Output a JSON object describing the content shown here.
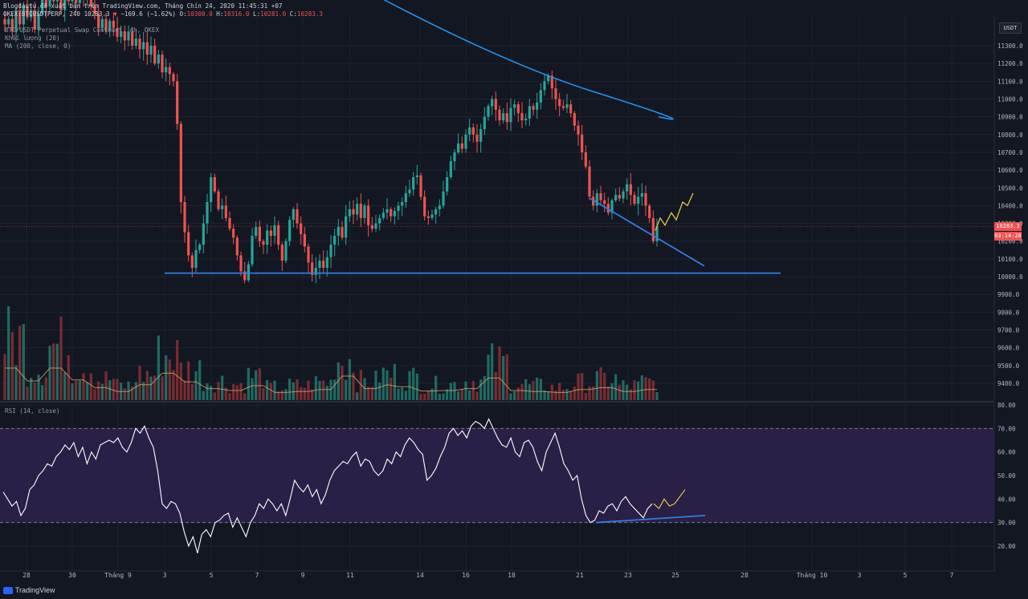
{
  "header": {
    "line1": "Blogdautu đã xuất bản trên TradingView.com, Tháng Chín 24, 2020 11:45:31 +07",
    "symbol": "OKEX:BTCUSDTPERP, 240",
    "last": "10283.3",
    "change": "−169.6 (−1.62%)",
    "o_label": "O:",
    "o_val": "10300.0",
    "h_label": "H:",
    "h_val": "10316.0",
    "l_label": "L:",
    "l_val": "10281.0",
    "c_label": "C:",
    "c_val": "10283.3"
  },
  "indicators": {
    "contract": "BTC/USDT Perpetual Swap Contract, 4h, OKEX",
    "volume": "Khối lượng (20)",
    "ma": "MA (200, close, 0)",
    "rsi": "RSI (14, close)"
  },
  "price_axis": {
    "currency": "USDT",
    "current_price": "10283.3",
    "countdown": "03:14:28"
  },
  "colors": {
    "background": "#131722",
    "up": "#26a69a",
    "down": "#ef5350",
    "ma": "#2196f3",
    "trendline": "#2f7fe0",
    "projection": "#f2d44b",
    "rsi_line": "#ffffff",
    "rsi_band": "#2a1f47"
  },
  "footer": {
    "brand": "TradingView"
  },
  "chart_data": [
    {
      "type": "candlestick",
      "title": "OKEX:BTCUSDTPERP, 240",
      "x_labels": [
        "28",
        "30",
        "Tháng 9",
        "3",
        "5",
        "7",
        "9",
        "11",
        "14",
        "16",
        "18",
        "21",
        "23",
        "25",
        "28",
        "Tháng 10",
        "3",
        "5",
        "7"
      ],
      "y_ticks": [
        "11300.0",
        "11200.0",
        "11100.0",
        "11000.0",
        "10900.0",
        "10800.0",
        "10700.0",
        "10600.0",
        "10500.0",
        "10400.0",
        "10300.0",
        "10200.0",
        "10100.0",
        "10000.0",
        "9900.0",
        "9800.0",
        "9700.0",
        "9600.0",
        "9500.0",
        "9400.0"
      ],
      "ylim": [
        9350,
        11400
      ],
      "close_path": [
        11420,
        11450,
        11380,
        11500,
        11420,
        11520,
        11460,
        11500,
        11390,
        11480,
        11560,
        11520,
        11600,
        11550,
        11660,
        11500,
        11630,
        11550,
        11700,
        11540,
        11750,
        11580,
        11640,
        11520,
        11480,
        11400,
        11450,
        11380,
        11440,
        11400,
        11350,
        11380,
        11330,
        11380,
        11300,
        11340,
        11280,
        11320,
        11250,
        11300,
        11200,
        11250,
        11150,
        11180,
        11140,
        11100,
        10860,
        10420,
        10250,
        10120,
        10050,
        10150,
        10180,
        10300,
        10420,
        10560,
        10480,
        10380,
        10400,
        10330,
        10270,
        10220,
        10120,
        10030,
        9980,
        10070,
        10230,
        10280,
        10200,
        10180,
        10260,
        10230,
        10290,
        10180,
        10090,
        10200,
        10320,
        10380,
        10300,
        10240,
        10170,
        10080,
        10010,
        10050,
        10090,
        10050,
        10110,
        10180,
        10230,
        10280,
        10220,
        10340,
        10380,
        10350,
        10410,
        10330,
        10400,
        10290,
        10270,
        10300,
        10330,
        10360,
        10380,
        10340,
        10370,
        10400,
        10420,
        10470,
        10490,
        10560,
        10570,
        10450,
        10340,
        10330,
        10350,
        10380,
        10400,
        10480,
        10560,
        10650,
        10700,
        10750,
        10720,
        10800,
        10840,
        10800,
        10760,
        10830,
        10900,
        10960,
        11000,
        10940,
        10880,
        10920,
        10870,
        10950,
        10970,
        10920,
        10880,
        10890,
        10960,
        10940,
        10980,
        11050,
        11100,
        11130,
        11060,
        11000,
        10960,
        10950,
        10970,
        10920,
        10850,
        10800,
        10700,
        10620,
        10450,
        10400,
        10470,
        10430,
        10410,
        10360,
        10430,
        10460,
        10440,
        10480,
        10520,
        10460,
        10410,
        10450,
        10470,
        10400,
        10330,
        10200,
        10283
      ],
      "volume_peaks": [
        380,
        200,
        340,
        210,
        130,
        90,
        160,
        280,
        190,
        120,
        100,
        150,
        80,
        90,
        110,
        250,
        120,
        160,
        140,
        95,
        100,
        120,
        230,
        100,
        90,
        80,
        110,
        130,
        90,
        110
      ],
      "ma200": {
        "name": "MA (200, close, 0)",
        "from_price": 11800,
        "to_price": 10900
      },
      "trendlines": [
        {
          "kind": "support",
          "price": 10020
        },
        {
          "kind": "descending",
          "from_price": 10440,
          "to_price": 10060
        }
      ],
      "projection": "higher"
    },
    {
      "type": "line",
      "title": "RSI (14, close)",
      "y_ticks": [
        "80.00",
        "70.00",
        "60.00",
        "50.00",
        "40.00",
        "30.00",
        "20.00"
      ],
      "ylim": [
        15,
        80
      ],
      "band": [
        30,
        70
      ],
      "values": [
        43,
        40,
        37,
        39,
        33,
        36,
        44,
        46,
        50,
        52,
        55,
        54,
        58,
        60,
        63,
        61,
        64,
        58,
        62,
        55,
        60,
        57,
        63,
        64,
        65,
        64,
        66,
        62,
        60,
        64,
        70,
        68,
        71,
        66,
        62,
        52,
        38,
        36,
        39,
        38,
        34,
        26,
        20,
        24,
        17,
        25,
        27,
        24,
        30,
        31,
        33,
        34,
        28,
        32,
        28,
        24,
        30,
        33,
        38,
        36,
        40,
        38,
        35,
        38,
        33,
        40,
        48,
        45,
        43,
        46,
        41,
        44,
        38,
        42,
        48,
        52,
        54,
        56,
        55,
        58,
        60,
        54,
        57,
        56,
        52,
        50,
        52,
        57,
        55,
        60,
        58,
        63,
        66,
        64,
        61,
        59,
        48,
        50,
        53,
        58,
        62,
        68,
        70,
        67,
        69,
        66,
        71,
        73,
        72,
        70,
        74,
        70,
        66,
        63,
        62,
        66,
        60,
        58,
        64,
        65,
        62,
        56,
        52,
        60,
        64,
        68,
        62,
        55,
        52,
        48,
        50,
        40,
        33,
        30,
        31,
        35,
        34,
        37,
        38,
        35,
        39,
        41,
        38,
        36,
        34,
        32,
        36,
        38
      ],
      "projection_values": [
        38,
        36,
        40,
        37,
        38,
        41,
        44
      ],
      "trendline": {
        "from": 30,
        "to": 33
      }
    }
  ]
}
